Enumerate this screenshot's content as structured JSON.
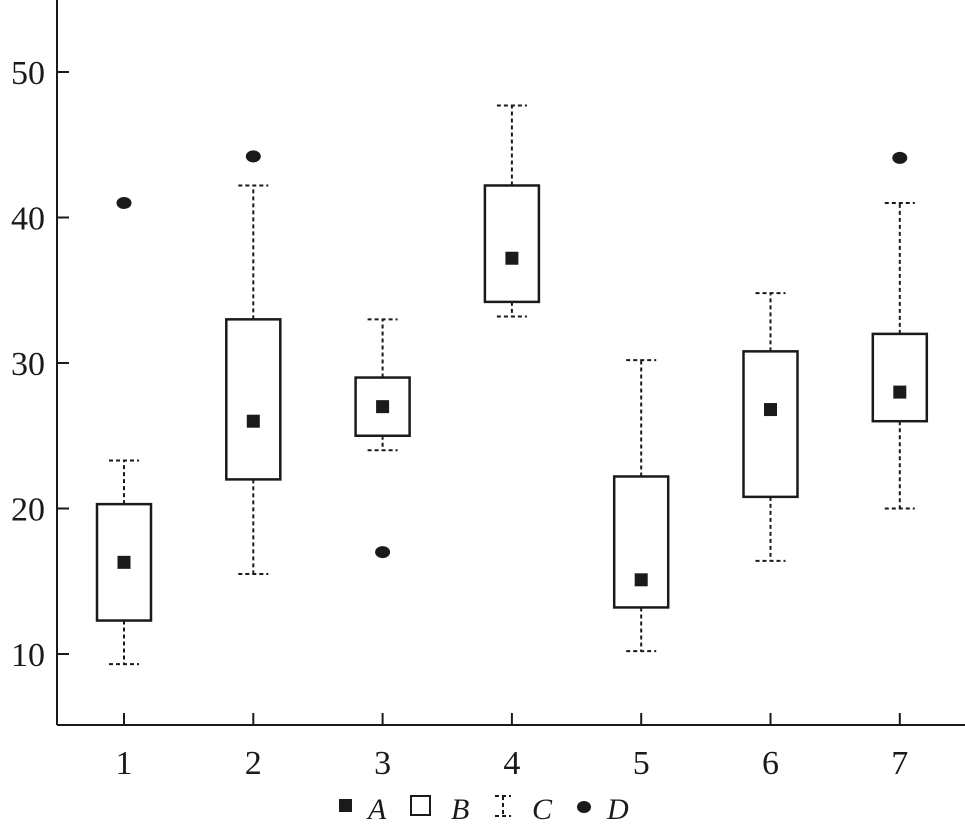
{
  "chart_data": {
    "type": "box",
    "categories": [
      "1",
      "2",
      "3",
      "4",
      "5",
      "6",
      "7"
    ],
    "y_ticks": [
      10,
      20,
      30,
      40,
      50
    ],
    "ylim": [
      5,
      55
    ],
    "boxes": [
      {
        "category": "1",
        "whisker_low": 9.3,
        "q1": 12.3,
        "q3": 20.3,
        "whisker_high": 23.3,
        "mean": 16.3,
        "outliers": [
          41.0
        ]
      },
      {
        "category": "2",
        "whisker_low": 15.5,
        "q1": 22.0,
        "q3": 33.0,
        "whisker_high": 42.2,
        "mean": 26.0,
        "outliers": [
          44.2
        ]
      },
      {
        "category": "3",
        "whisker_low": 24.0,
        "q1": 25.0,
        "q3": 29.0,
        "whisker_high": 33.0,
        "mean": 27.0,
        "outliers": [
          17.0
        ]
      },
      {
        "category": "4",
        "whisker_low": 33.2,
        "q1": 34.2,
        "q3": 42.2,
        "whisker_high": 47.7,
        "mean": 37.2,
        "outliers": []
      },
      {
        "category": "5",
        "whisker_low": 10.2,
        "q1": 13.2,
        "q3": 22.2,
        "whisker_high": 30.2,
        "mean": 15.1,
        "outliers": []
      },
      {
        "category": "6",
        "whisker_low": 16.4,
        "q1": 20.8,
        "q3": 30.8,
        "whisker_high": 34.8,
        "mean": 26.8,
        "outliers": []
      },
      {
        "category": "7",
        "whisker_low": 20.0,
        "q1": 26.0,
        "q3": 32.0,
        "whisker_high": 41.0,
        "mean": 28.0,
        "outliers": [
          44.1
        ]
      }
    ],
    "legend": {
      "placement": "bottom-center",
      "items": [
        {
          "symbol": "filled-square",
          "label": "A"
        },
        {
          "symbol": "open-square",
          "label": "B"
        },
        {
          "symbol": "dashed-whisker",
          "label": "C"
        },
        {
          "symbol": "filled-circle",
          "label": "D"
        }
      ]
    },
    "grid": false
  }
}
